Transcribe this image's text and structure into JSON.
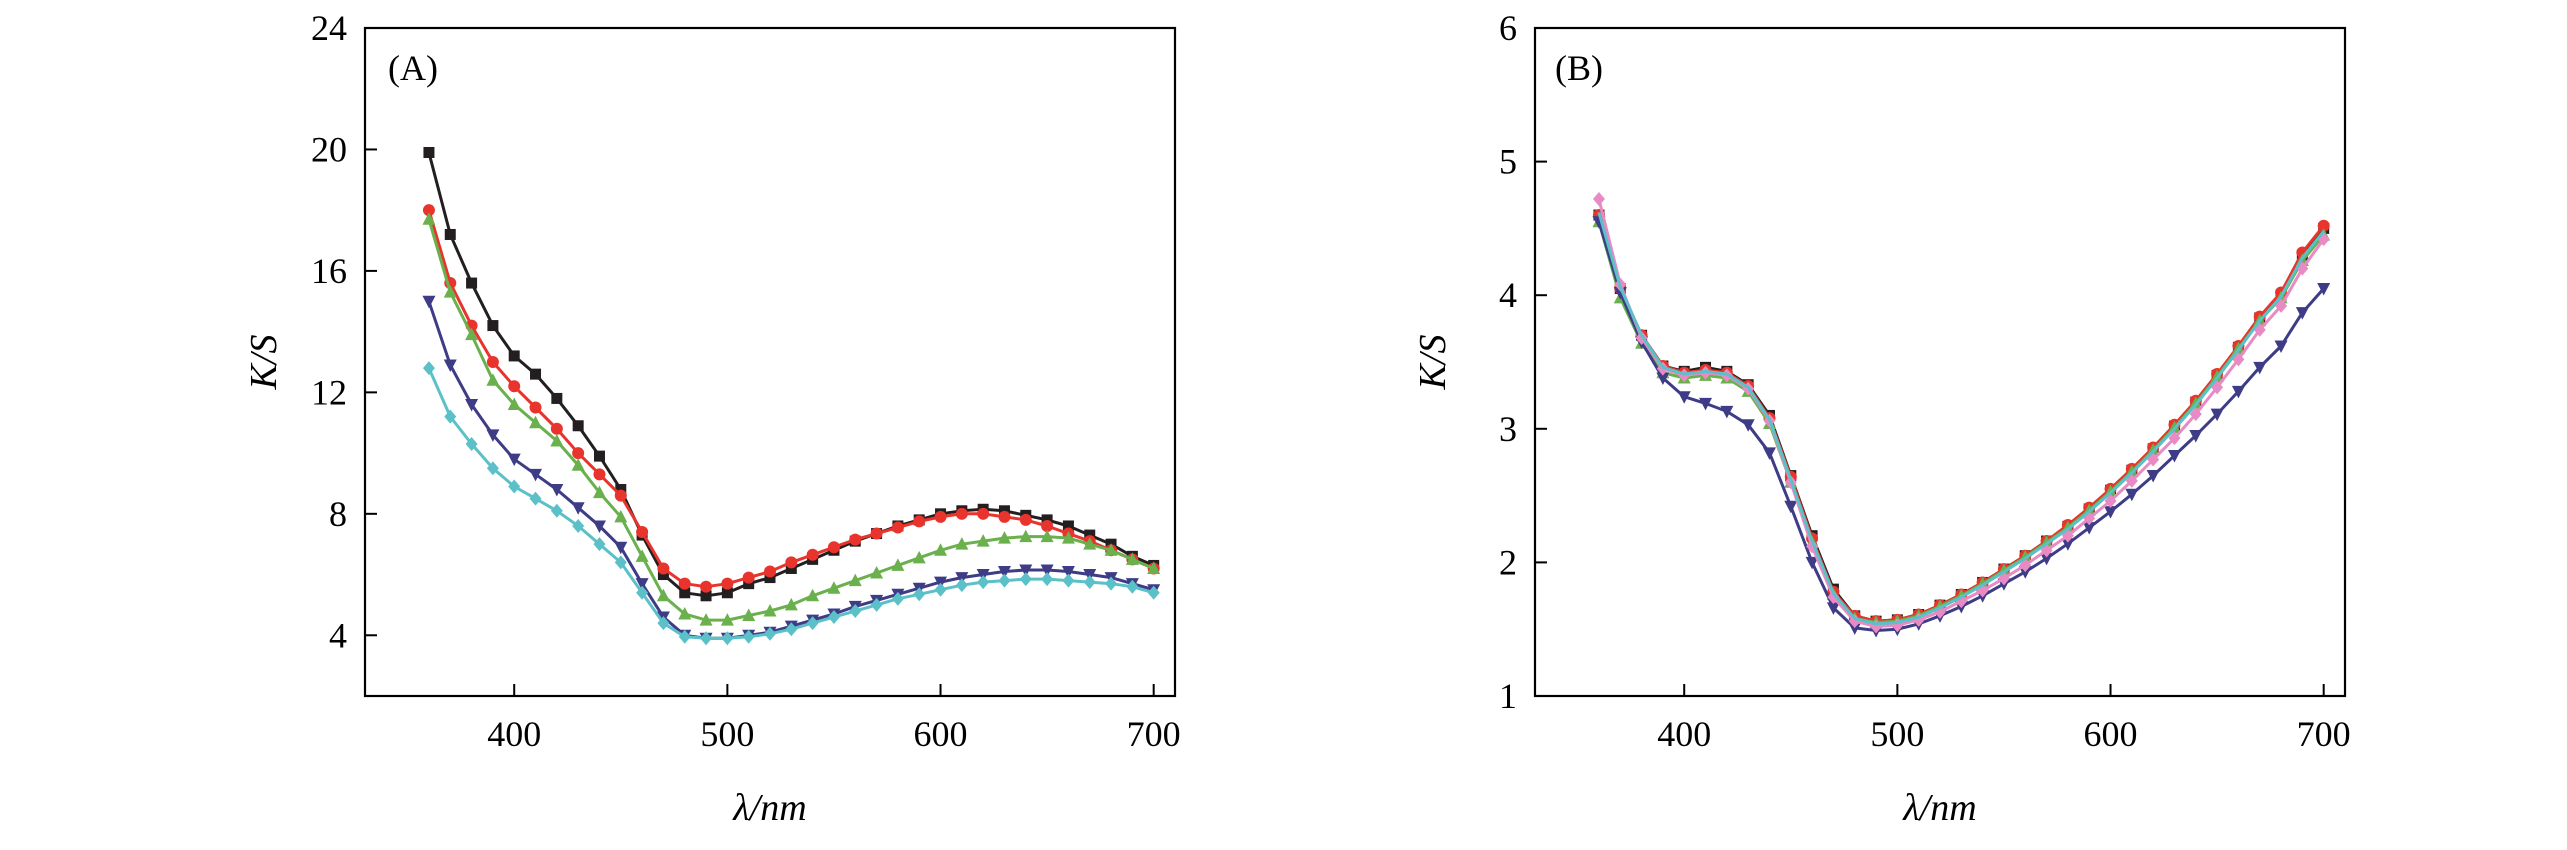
{
  "chart_data": [
    {
      "type": "line",
      "panel_label": "(A)",
      "xlabel": "λ/nm",
      "ylabel": "K/S",
      "xlim": [
        330,
        710
      ],
      "ylim": [
        2,
        24
      ],
      "xticks": [
        400,
        500,
        600,
        700
      ],
      "yticks": [
        4,
        8,
        12,
        16,
        20,
        24
      ],
      "x": [
        360,
        370,
        380,
        390,
        400,
        410,
        420,
        430,
        440,
        450,
        460,
        470,
        480,
        490,
        500,
        510,
        520,
        530,
        540,
        550,
        560,
        570,
        580,
        590,
        600,
        610,
        620,
        630,
        640,
        650,
        660,
        670,
        680,
        690,
        700
      ],
      "series": [
        {
          "color": "#231f20",
          "marker": "square",
          "values": [
            19.9,
            17.2,
            15.6,
            14.2,
            13.2,
            12.6,
            11.8,
            10.9,
            9.9,
            8.8,
            7.3,
            6.0,
            5.4,
            5.3,
            5.4,
            5.7,
            5.9,
            6.2,
            6.5,
            6.8,
            7.1,
            7.35,
            7.6,
            7.8,
            8.0,
            8.1,
            8.15,
            8.1,
            7.95,
            7.8,
            7.6,
            7.3,
            7.0,
            6.6,
            6.3
          ]
        },
        {
          "color": "#e8342c",
          "marker": "circle",
          "values": [
            18.0,
            15.6,
            14.2,
            13.0,
            12.2,
            11.5,
            10.8,
            10.0,
            9.3,
            8.6,
            7.4,
            6.2,
            5.7,
            5.6,
            5.7,
            5.9,
            6.1,
            6.4,
            6.65,
            6.9,
            7.15,
            7.35,
            7.55,
            7.75,
            7.9,
            8.0,
            8.0,
            7.9,
            7.8,
            7.6,
            7.35,
            7.1,
            6.8,
            6.5,
            6.2
          ]
        },
        {
          "color": "#6ab04c",
          "marker": "triangle-up",
          "values": [
            17.7,
            15.3,
            13.9,
            12.4,
            11.6,
            11.0,
            10.4,
            9.6,
            8.7,
            7.9,
            6.6,
            5.3,
            4.7,
            4.5,
            4.5,
            4.65,
            4.8,
            5.0,
            5.3,
            5.55,
            5.8,
            6.05,
            6.3,
            6.55,
            6.8,
            7.0,
            7.1,
            7.2,
            7.25,
            7.25,
            7.2,
            7.0,
            6.8,
            6.5,
            6.2
          ]
        },
        {
          "color": "#3e3b87",
          "marker": "triangle-down",
          "values": [
            15.0,
            12.9,
            11.6,
            10.6,
            9.8,
            9.3,
            8.8,
            8.2,
            7.6,
            6.9,
            5.7,
            4.6,
            4.0,
            3.9,
            3.9,
            4.0,
            4.1,
            4.3,
            4.5,
            4.7,
            4.95,
            5.15,
            5.35,
            5.55,
            5.75,
            5.9,
            6.0,
            6.1,
            6.15,
            6.15,
            6.1,
            6.0,
            5.9,
            5.7,
            5.5
          ]
        },
        {
          "color": "#5bc0c8",
          "marker": "diamond",
          "values": [
            12.8,
            11.2,
            10.3,
            9.5,
            8.9,
            8.5,
            8.1,
            7.6,
            7.0,
            6.4,
            5.4,
            4.4,
            3.95,
            3.9,
            3.9,
            3.95,
            4.05,
            4.2,
            4.4,
            4.6,
            4.8,
            5.0,
            5.2,
            5.35,
            5.5,
            5.65,
            5.75,
            5.8,
            5.85,
            5.85,
            5.8,
            5.75,
            5.7,
            5.6,
            5.4
          ]
        }
      ]
    },
    {
      "type": "line",
      "panel_label": "(B)",
      "xlabel": "λ/nm",
      "ylabel": "K/S",
      "xlim": [
        330,
        710
      ],
      "ylim": [
        1,
        6
      ],
      "xticks": [
        400,
        500,
        600,
        700
      ],
      "yticks": [
        1,
        2,
        3,
        4,
        5,
        6
      ],
      "x": [
        360,
        370,
        380,
        390,
        400,
        410,
        420,
        430,
        440,
        450,
        460,
        470,
        480,
        490,
        500,
        510,
        520,
        530,
        540,
        550,
        560,
        570,
        580,
        590,
        600,
        610,
        620,
        630,
        640,
        650,
        660,
        670,
        680,
        690,
        700
      ],
      "series": [
        {
          "color": "#231f20",
          "marker": "square",
          "values": [
            4.6,
            4.05,
            3.7,
            3.47,
            3.43,
            3.46,
            3.43,
            3.33,
            3.1,
            2.65,
            2.2,
            1.8,
            1.6,
            1.56,
            1.57,
            1.61,
            1.68,
            1.76,
            1.85,
            1.95,
            2.05,
            2.16,
            2.27,
            2.4,
            2.54,
            2.69,
            2.85,
            3.02,
            3.2,
            3.4,
            3.61,
            3.83,
            4.0,
            4.3,
            4.5
          ]
        },
        {
          "color": "#e8342c",
          "marker": "circle",
          "values": [
            4.6,
            4.05,
            3.7,
            3.47,
            3.42,
            3.44,
            3.42,
            3.32,
            3.08,
            2.64,
            2.18,
            1.78,
            1.6,
            1.56,
            1.57,
            1.61,
            1.68,
            1.76,
            1.85,
            1.95,
            2.05,
            2.16,
            2.28,
            2.41,
            2.55,
            2.7,
            2.86,
            3.03,
            3.21,
            3.41,
            3.62,
            3.84,
            4.02,
            4.32,
            4.52
          ]
        },
        {
          "color": "#6ab04c",
          "marker": "triangle-up",
          "values": [
            4.55,
            3.98,
            3.64,
            3.42,
            3.38,
            3.4,
            3.38,
            3.28,
            3.04,
            2.6,
            2.15,
            1.76,
            1.58,
            1.55,
            1.56,
            1.6,
            1.67,
            1.75,
            1.84,
            1.94,
            2.04,
            2.15,
            2.26,
            2.39,
            2.53,
            2.68,
            2.84,
            3.01,
            3.19,
            3.39,
            3.6,
            3.81,
            3.98,
            4.26,
            4.45
          ]
        },
        {
          "color": "#3e3b87",
          "marker": "triangle-down",
          "values": [
            4.55,
            4.02,
            3.65,
            3.38,
            3.24,
            3.19,
            3.13,
            3.03,
            2.82,
            2.42,
            2.0,
            1.66,
            1.51,
            1.49,
            1.5,
            1.54,
            1.6,
            1.67,
            1.75,
            1.84,
            1.93,
            2.03,
            2.14,
            2.26,
            2.38,
            2.51,
            2.65,
            2.8,
            2.95,
            3.11,
            3.28,
            3.46,
            3.62,
            3.87,
            4.05
          ]
        },
        {
          "color": "#e88bc4",
          "marker": "diamond",
          "values": [
            4.72,
            4.08,
            3.68,
            3.45,
            3.4,
            3.42,
            3.4,
            3.3,
            3.06,
            2.6,
            2.12,
            1.74,
            1.56,
            1.52,
            1.53,
            1.57,
            1.63,
            1.71,
            1.79,
            1.88,
            1.98,
            2.09,
            2.2,
            2.33,
            2.46,
            2.61,
            2.77,
            2.93,
            3.11,
            3.31,
            3.52,
            3.74,
            3.92,
            4.2,
            4.42
          ]
        },
        {
          "color": "#5bc0c8",
          "marker": "none",
          "values": [
            4.62,
            4.06,
            3.7,
            3.46,
            3.41,
            3.43,
            3.41,
            3.31,
            3.07,
            2.62,
            2.16,
            1.77,
            1.58,
            1.54,
            1.55,
            1.59,
            1.66,
            1.74,
            1.83,
            1.93,
            2.03,
            2.14,
            2.25,
            2.38,
            2.52,
            2.67,
            2.83,
            3.0,
            3.18,
            3.38,
            3.59,
            3.81,
            3.99,
            4.28,
            4.48
          ]
        }
      ]
    }
  ]
}
